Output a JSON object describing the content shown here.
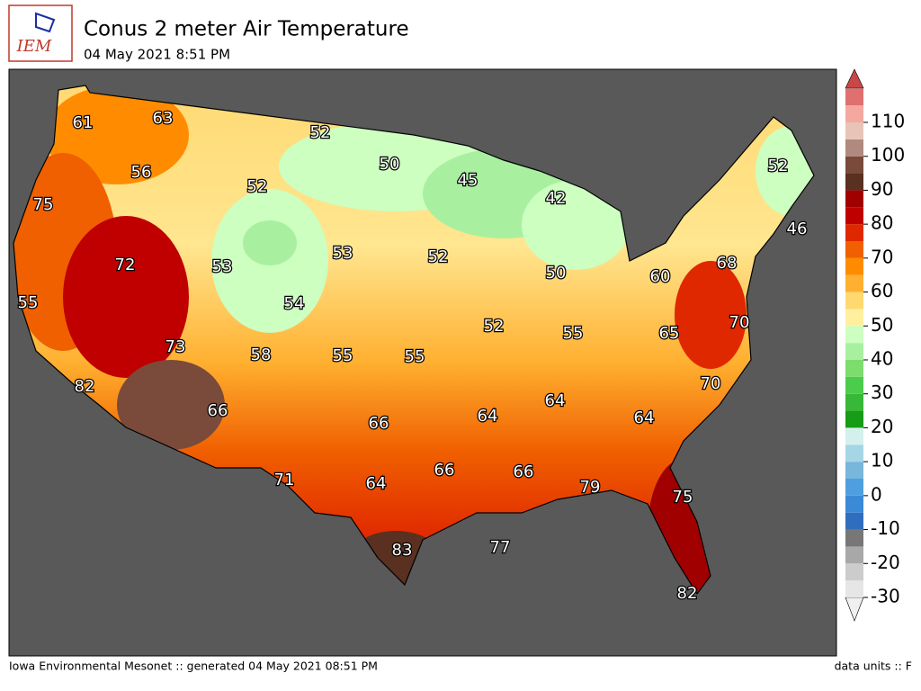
{
  "header": {
    "logo": "IEM",
    "title": "Conus 2 meter Air Temperature",
    "subtitle": "04 May 2021 8:51 PM"
  },
  "map": {
    "labels": [
      61,
      63,
      52,
      56,
      50,
      45,
      52,
      42,
      52,
      75,
      46,
      72,
      53,
      53,
      52,
      68,
      50,
      60,
      55,
      54,
      52,
      70,
      55,
      65,
      73,
      58,
      55,
      55,
      82,
      70,
      64,
      66,
      64,
      64,
      66,
      66,
      66,
      71,
      64,
      79,
      75,
      77,
      83,
      82
    ]
  },
  "colorbar": {
    "ticks": [
      -30,
      -20,
      -10,
      0,
      10,
      20,
      30,
      40,
      50,
      60,
      70,
      80,
      90,
      100,
      110
    ],
    "colors": [
      "#e6e6e6",
      "#cccccc",
      "#a8a8a8",
      "#777777",
      "#2f6ebf",
      "#3a8ad8",
      "#4f9fe0",
      "#78b6dc",
      "#a6d6e6",
      "#d4f0ec",
      "#169c16",
      "#38b838",
      "#4ccc4c",
      "#7cdc6c",
      "#a8f0a0",
      "#ccffc0",
      "#fff0a0",
      "#ffd870",
      "#ffb030",
      "#ff8c00",
      "#f06000",
      "#e02800",
      "#c00000",
      "#a00000",
      "#5a3020",
      "#7a4a3a",
      "#b08a80",
      "#e8c4b8",
      "#f4a8a0",
      "#e07070"
    ]
  },
  "footer": {
    "left": "Iowa Environmental Mesonet :: generated 04 May 2021 08:51 PM",
    "right": "data units :: F"
  }
}
